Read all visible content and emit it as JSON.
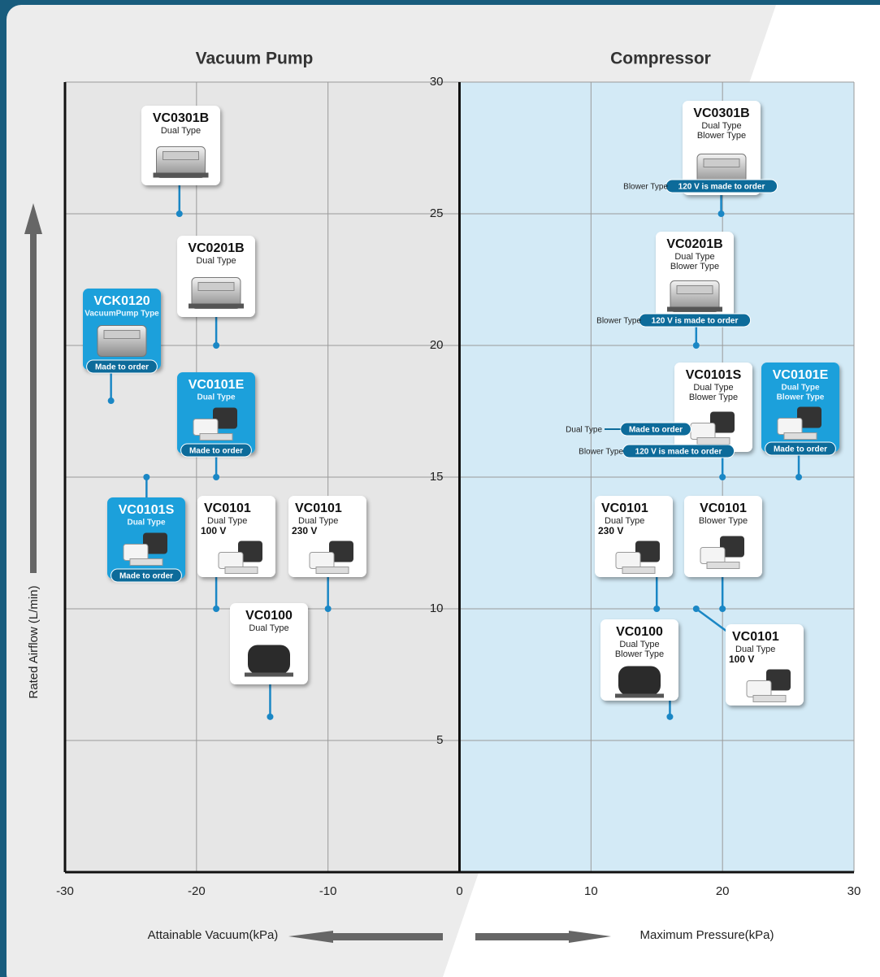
{
  "chart_data": {
    "type": "scatter",
    "left_title": "Vacuum Pump",
    "right_title": "Compressor",
    "ylabel": "Rated Airflow (L/min)",
    "xlabel_left": "Attainable Vacuum(kPa)",
    "xlabel_right": "Maximum Pressure(kPa)",
    "xlim": [
      -30,
      30
    ],
    "ylim": [
      0,
      30
    ],
    "xticks": [
      -30,
      -20,
      -10,
      0,
      10,
      20,
      30
    ],
    "yticks": [
      5,
      10,
      15,
      20,
      25,
      30
    ],
    "grid": true,
    "point_color": "#1a87c5",
    "panel_colors": [
      "#e6e6e6",
      "#d3eaf6"
    ],
    "highlight_color": "#1aa0db",
    "badge_color": "#0d6b9a",
    "points": [
      {
        "name": "VC0301B",
        "lines": [
          "Dual Type"
        ],
        "x": -21.3,
        "y": 25
      },
      {
        "name": "VC0201B",
        "lines": [
          "Dual Type"
        ],
        "x": -18.5,
        "y": 20
      },
      {
        "name": "VCK0120",
        "lines": [
          "VacuumPump Type"
        ],
        "x": -26.5,
        "y": 17.9,
        "highlight": true,
        "badge": "Made to order"
      },
      {
        "name": "VC0101E",
        "lines": [
          "Dual Type"
        ],
        "x": -18.5,
        "y": 15,
        "highlight": true,
        "badge": "Made to order"
      },
      {
        "name": "VC0101S",
        "lines": [
          "Dual Type"
        ],
        "x": -23.8,
        "y": 15,
        "highlight": true,
        "badge": "Made to order"
      },
      {
        "name": "VC0101",
        "lines": [
          "Dual Type"
        ],
        "voltage": "100 V",
        "x": -18.5,
        "y": 10
      },
      {
        "name": "VC0101",
        "lines": [
          "Dual Type"
        ],
        "voltage": "230 V",
        "x": -10,
        "y": 10
      },
      {
        "name": "VC0100",
        "lines": [
          "Dual Type"
        ],
        "x": -14.4,
        "y": 5.9
      },
      {
        "name": "VC0301B",
        "lines": [
          "Dual Type",
          "Blower Type"
        ],
        "x": 19.9,
        "y": 25,
        "callouts": [
          {
            "label": "Blower Type",
            "badge": "120 V is made to order"
          }
        ]
      },
      {
        "name": "VC0201B",
        "lines": [
          "Dual Type",
          "Blower Type"
        ],
        "x": 18,
        "y": 20,
        "callouts": [
          {
            "label": "Blower Type",
            "badge": "120 V is made to order"
          }
        ]
      },
      {
        "name": "VC0101S",
        "lines": [
          "Dual Type",
          "Blower Type"
        ],
        "x": 20,
        "y": 15,
        "callouts": [
          {
            "label": "Dual Type",
            "badge": "Made to order"
          },
          {
            "label": "Blower Type",
            "badge": "120 V is made to order"
          }
        ]
      },
      {
        "name": "VC0101E",
        "lines": [
          "Dual Type",
          "Blower Type"
        ],
        "x": 25.8,
        "y": 15,
        "highlight": true,
        "badge": "Made to order"
      },
      {
        "name": "VC0101",
        "lines": [
          "Dual Type"
        ],
        "voltage": "230 V",
        "x": 15,
        "y": 10
      },
      {
        "name": "VC0101",
        "lines": [
          "Blower Type"
        ],
        "x": 20,
        "y": 10
      },
      {
        "name": "VC0101",
        "lines": [
          "Dual Type"
        ],
        "voltage": "100 V",
        "x": 18,
        "y": 10
      },
      {
        "name": "VC0100",
        "lines": [
          "Dual Type",
          "Blower Type"
        ],
        "x": 16,
        "y": 5.9
      }
    ]
  }
}
